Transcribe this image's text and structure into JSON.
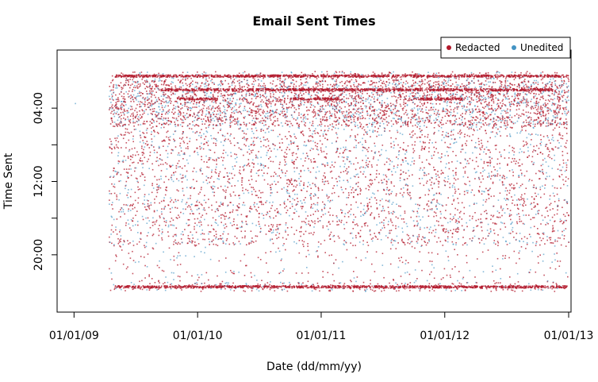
{
  "chart_data": {
    "type": "scatter",
    "title": "Email Sent Times",
    "xlabel": "Date (dd/mm/yy)",
    "ylabel": "Time Sent",
    "x_ticks": [
      {
        "date": "2009-01-01",
        "label": "01/01/09"
      },
      {
        "date": "2010-01-01",
        "label": "01/01/10"
      },
      {
        "date": "2011-01-01",
        "label": "01/01/11"
      },
      {
        "date": "2012-01-01",
        "label": "01/01/12"
      },
      {
        "date": "2013-01-01",
        "label": "01/01/13"
      }
    ],
    "y_ticks": [
      {
        "hour": 4,
        "label": "04:00"
      },
      {
        "hour": 8,
        "label": ""
      },
      {
        "hour": 12,
        "label": "12:00"
      },
      {
        "hour": 16,
        "label": ""
      },
      {
        "hour": 20,
        "label": "20:00"
      }
    ],
    "xlim": [
      "2008-11-12",
      "2013-01-08"
    ],
    "ylim_hours": [
      0,
      24
    ],
    "y_reversed": true,
    "x_range_of_points": [
      "2009-04-15",
      "2013-01-01"
    ],
    "grid": false,
    "legend": {
      "placement": "top-right",
      "entries": [
        {
          "label": "Redacted",
          "color": "#b2182b"
        },
        {
          "label": "Unedited",
          "color": "#4393c3"
        }
      ]
    },
    "series": [
      {
        "name": "Redacted",
        "color": "#b2182b"
      },
      {
        "name": "Unedited",
        "color": "#4393c3"
      }
    ],
    "notable_clusters": [
      {
        "series": "Redacted",
        "hour": 2.0,
        "from": "2009-09-15",
        "to": "2012-11-15",
        "description": "dense line"
      },
      {
        "series": "Redacted",
        "hour": 3.0,
        "from": "2009-11-01",
        "to": "2010-03-01",
        "description": "dense line"
      },
      {
        "series": "Redacted",
        "hour": 3.0,
        "from": "2010-10-01",
        "to": "2011-03-01",
        "description": "dense line"
      },
      {
        "series": "Redacted",
        "hour": 3.0,
        "from": "2011-10-01",
        "to": "2012-03-01",
        "description": "dense line"
      },
      {
        "series": "Redacted",
        "hour": 23.5,
        "from": "2009-05-01",
        "to": "2013-01-01",
        "description": "band near midnight"
      },
      {
        "series": "Redacted",
        "hour": 0.5,
        "from": "2009-05-01",
        "to": "2013-01-01",
        "description": "band after midnight"
      }
    ]
  }
}
